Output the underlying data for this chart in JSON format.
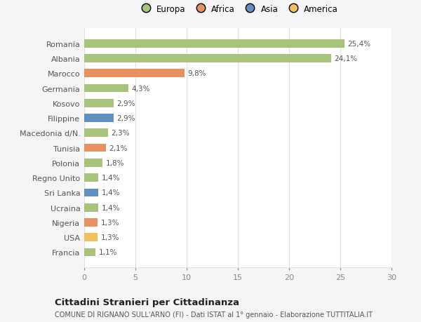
{
  "categories": [
    "Francia",
    "USA",
    "Nigeria",
    "Ucraina",
    "Sri Lanka",
    "Regno Unito",
    "Polonia",
    "Tunisia",
    "Macedonia d/N.",
    "Filippine",
    "Kosovo",
    "Germania",
    "Marocco",
    "Albania",
    "Romania"
  ],
  "values": [
    1.1,
    1.3,
    1.3,
    1.4,
    1.4,
    1.4,
    1.8,
    2.1,
    2.3,
    2.9,
    2.9,
    4.3,
    9.8,
    24.1,
    25.4
  ],
  "labels": [
    "1,1%",
    "1,3%",
    "1,3%",
    "1,4%",
    "1,4%",
    "1,4%",
    "1,8%",
    "2,1%",
    "2,3%",
    "2,9%",
    "2,9%",
    "4,3%",
    "9,8%",
    "24,1%",
    "25,4%"
  ],
  "colors": [
    "#a8c47a",
    "#f0c060",
    "#e89060",
    "#a8c47a",
    "#6090c0",
    "#a8c47a",
    "#a8c47a",
    "#e89060",
    "#a8c47a",
    "#6090c0",
    "#a8c47a",
    "#a8c47a",
    "#e89060",
    "#a8c47a",
    "#a8c47a"
  ],
  "legend_labels": [
    "Europa",
    "Africa",
    "Asia",
    "America"
  ],
  "legend_colors": [
    "#a8c47a",
    "#e89060",
    "#6090c0",
    "#f0c060"
  ],
  "title": "Cittadini Stranieri per Cittadinanza",
  "subtitle": "COMUNE DI RIGNANO SULL'ARNO (FI) - Dati ISTAT al 1° gennaio - Elaborazione TUTTITALIA.IT",
  "xlim": [
    0,
    30
  ],
  "xticks": [
    0,
    5,
    10,
    15,
    20,
    25,
    30
  ],
  "background_color": "#f5f5f5",
  "bar_background": "#ffffff",
  "grid_color": "#e0e0e0"
}
